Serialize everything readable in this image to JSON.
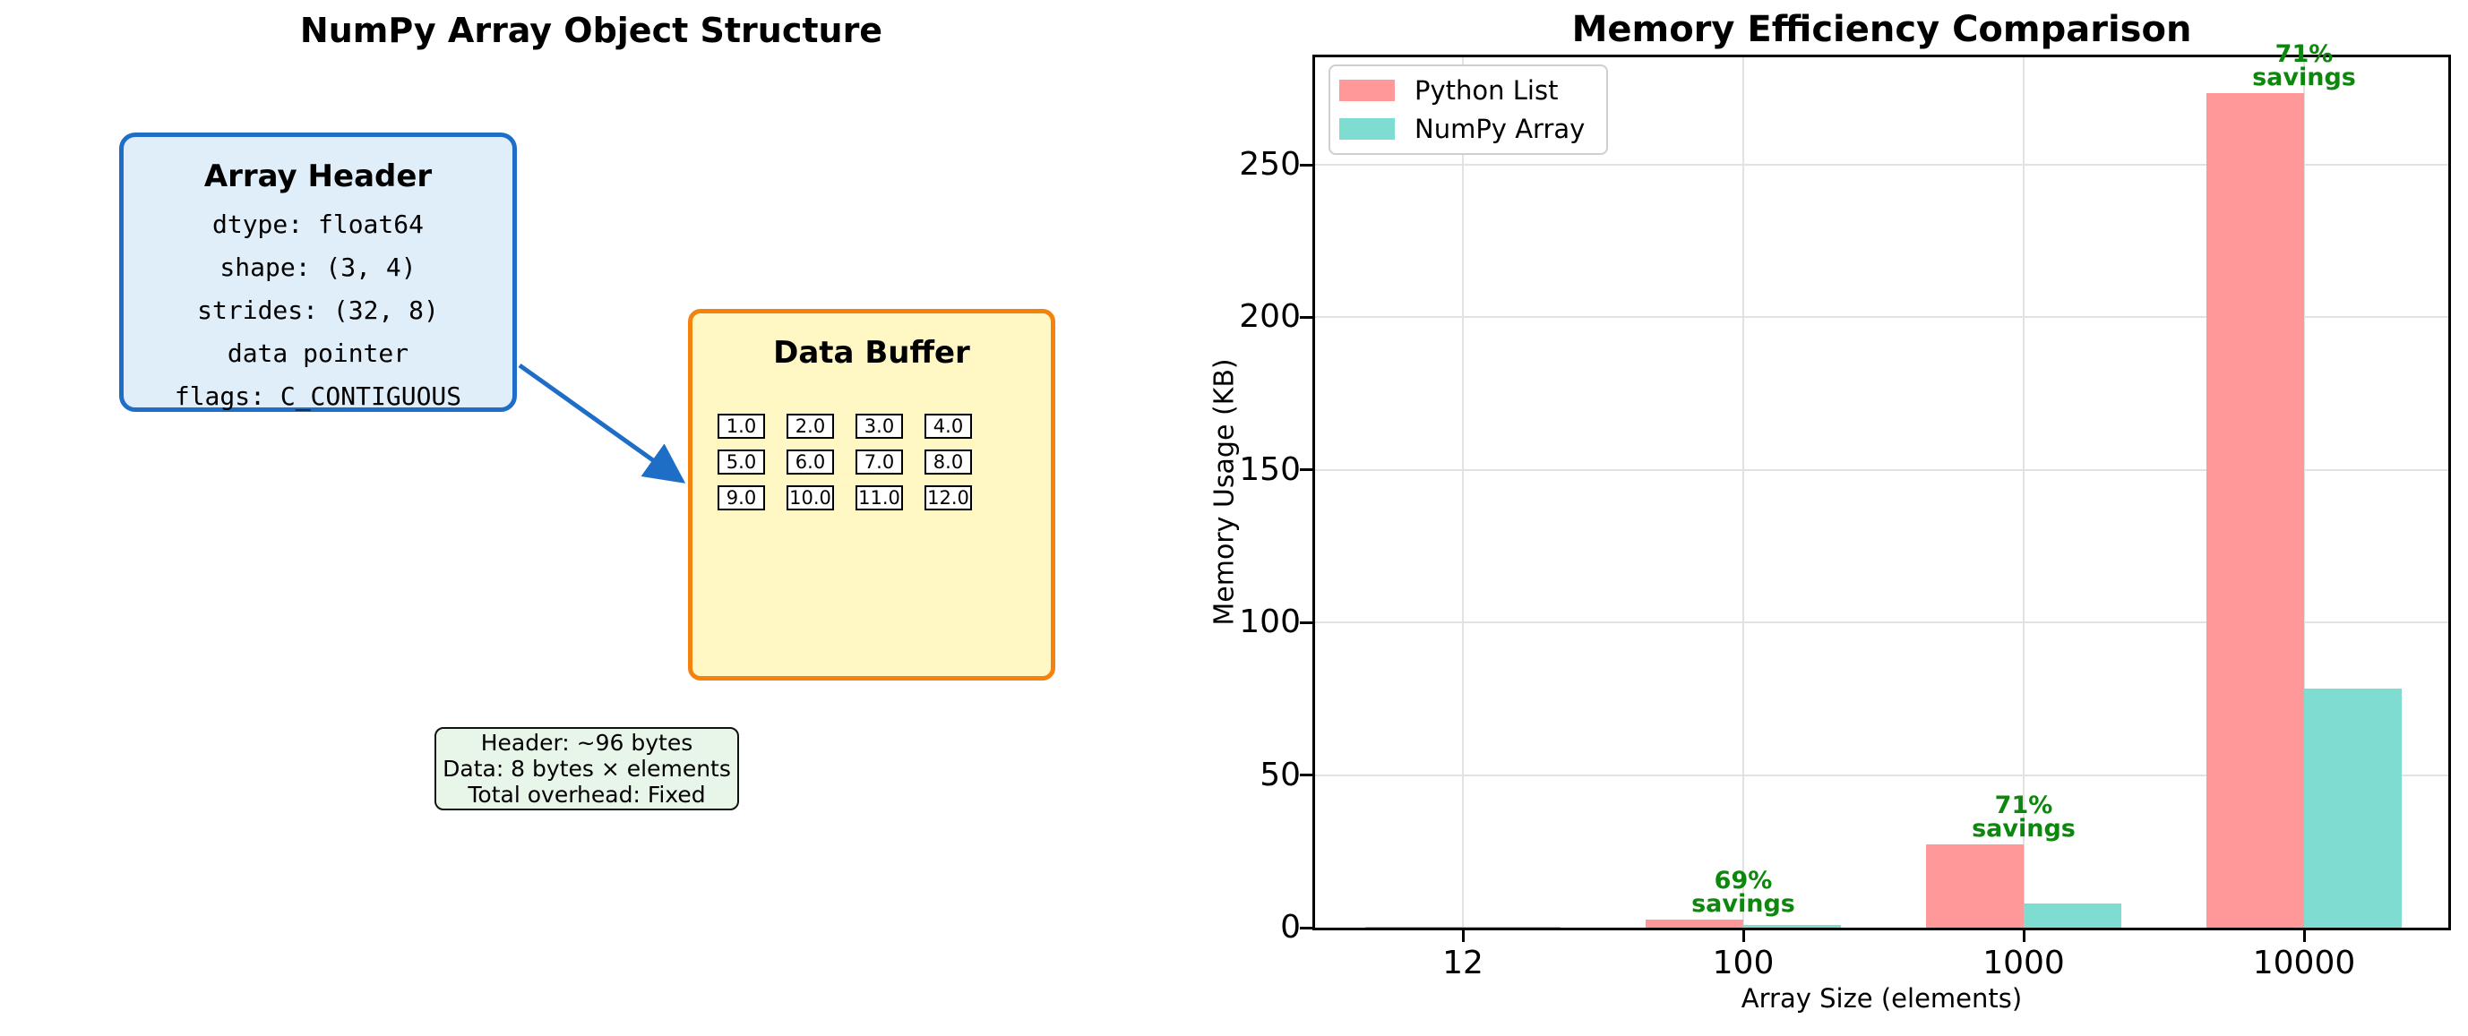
{
  "left_panel": {
    "title": "NumPy Array Object Structure",
    "header_box": {
      "title": "Array Header",
      "lines": [
        "dtype: float64",
        "shape: (3, 4)",
        "strides: (32, 8)",
        "data pointer",
        "flags: C_CONTIGUOUS"
      ],
      "fill_color": "#e0eefa",
      "border_color": "#1e6ec8"
    },
    "buffer_box": {
      "title": "Data Buffer",
      "cells": [
        [
          "1.0",
          "2.0",
          "3.0",
          "4.0"
        ],
        [
          "5.0",
          "6.0",
          "7.0",
          "8.0"
        ],
        [
          "9.0",
          "10.0",
          "11.0",
          "12.0"
        ]
      ],
      "fill_color": "#fff8c4",
      "border_color": "#f5820d"
    },
    "note_box": {
      "lines": [
        "Header: ~96 bytes",
        "Data: 8 bytes × elements",
        "Total overhead: Fixed"
      ],
      "fill_color": "#e8f5e9"
    },
    "arrow_color": "#1e6ec8"
  },
  "chart_data": {
    "type": "bar",
    "title": "Memory Efficiency Comparison",
    "xlabel": "Array Size (elements)",
    "ylabel": "Memory Usage (KB)",
    "categories": [
      "12",
      "100",
      "1000",
      "10000"
    ],
    "series": [
      {
        "name": "Python List",
        "color": "#ff9999",
        "values": [
          0.3,
          2.7,
          27.3,
          273.4
        ]
      },
      {
        "name": "NumPy Array",
        "color": "#7edcd0",
        "values": [
          0.2,
          0.9,
          7.9,
          78.2
        ]
      }
    ],
    "yticks": [
      0,
      50,
      100,
      150,
      200,
      250
    ],
    "ylim": [
      0,
      287
    ],
    "grid": true,
    "legend_position": "upper left",
    "annotations": [
      {
        "category": "100",
        "lines": [
          "69%",
          "savings"
        ]
      },
      {
        "category": "1000",
        "lines": [
          "71%",
          "savings"
        ]
      },
      {
        "category": "10000",
        "lines": [
          "71%",
          "savings"
        ]
      }
    ],
    "annotation_color": "#0e870e"
  }
}
